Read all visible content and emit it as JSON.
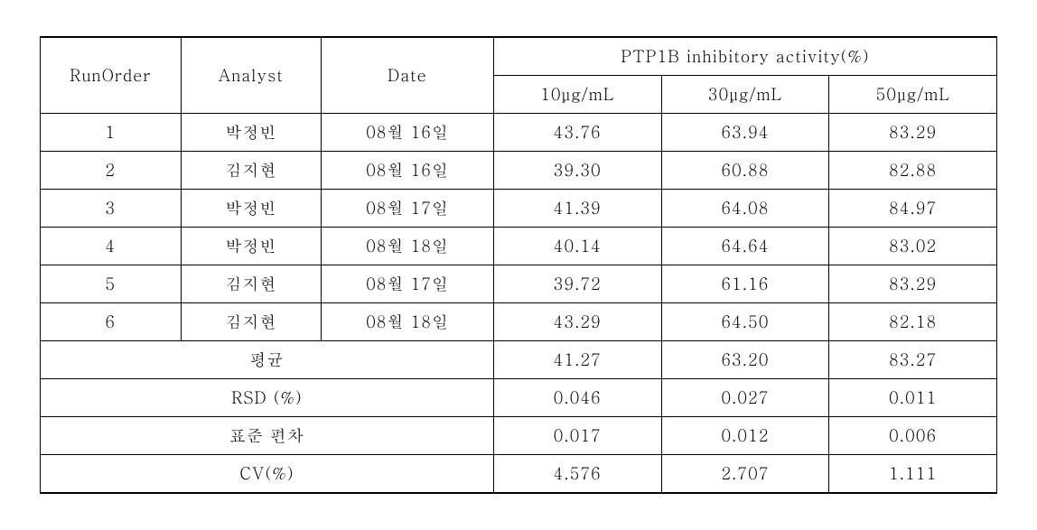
{
  "header": {
    "runorder": "RunOrder",
    "analyst": "Analyst",
    "date": "Date",
    "group": "PTP1B inhibitory activity(%)",
    "c10": "10μg/mL",
    "c30": "30μg/mL",
    "c50": "50μg/mL"
  },
  "rows": [
    {
      "run": "1",
      "analyst": "박정빈",
      "date": "08월 16일",
      "v10": "43.76",
      "v30": "63.94",
      "v50": "83.29"
    },
    {
      "run": "2",
      "analyst": "김지현",
      "date": "08월 16일",
      "v10": "39.30",
      "v30": "60.88",
      "v50": "82.88"
    },
    {
      "run": "3",
      "analyst": "박정빈",
      "date": "08월 17일",
      "v10": "41.39",
      "v30": "64.08",
      "v50": "84.97"
    },
    {
      "run": "4",
      "analyst": "박정빈",
      "date": "08월 18일",
      "v10": "40.14",
      "v30": "64.64",
      "v50": "83.02"
    },
    {
      "run": "5",
      "analyst": "김지현",
      "date": "08월 17일",
      "v10": "39.72",
      "v30": "61.16",
      "v50": "83.29"
    },
    {
      "run": "6",
      "analyst": "김지현",
      "date": "08월 18일",
      "v10": "43.29",
      "v30": "64.50",
      "v50": "82.18"
    }
  ],
  "summary": [
    {
      "label": "평균",
      "v10": "41.27",
      "v30": "63.20",
      "v50": "83.27"
    },
    {
      "label": "RSD (%)",
      "v10": "0.046",
      "v30": "0.027",
      "v50": "0.011"
    },
    {
      "label": "표준 편차",
      "v10": "0.017",
      "v30": "0.012",
      "v50": "0.006"
    },
    {
      "label": "CV(%)",
      "v10": "4.576",
      "v30": "2.707",
      "v50": "1.111"
    }
  ]
}
